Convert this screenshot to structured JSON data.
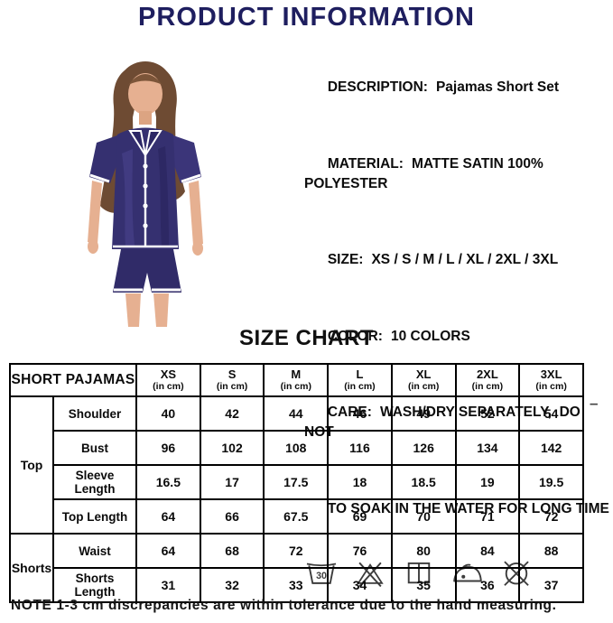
{
  "header": {
    "title": "PRODUCT INFORMATION",
    "accent_color": "#1e1e5f"
  },
  "product_photo": {
    "description": "model wearing navy satin short-sleeve pajama set with white piping",
    "garment_color": "#353070",
    "trim_color": "#ffffff"
  },
  "details": [
    {
      "label": "DESCRIPTION:",
      "value": "Pajamas Short Set"
    },
    {
      "label": "MATERIAL:",
      "value": "MATTE SATIN 100% POLYESTER"
    },
    {
      "label": "SIZE:",
      "value": "XS / S / M / L / XL / 2XL / 3XL"
    },
    {
      "label": "COLOR:",
      "value": "10 COLORS"
    },
    {
      "label": "CARE:",
      "value": "WASH/DRY SEPARATELY,  DO NOT"
    },
    {
      "label": "",
      "value": "TO SOAK IN THE WATER FOR LONG TIME"
    }
  ],
  "care_symbols": {
    "wash_temp": "30",
    "icons": [
      "machine-wash-30",
      "do-not-bleach",
      "line-dry",
      "iron-low-heat",
      "do-not-dry-clean"
    ]
  },
  "size_chart": {
    "title": "SIZE CHART",
    "corner_label": "SHORT PAJAMAS",
    "unit_note": "(in cm)",
    "sizes": [
      "XS",
      "S",
      "M",
      "L",
      "XL",
      "2XL",
      "3XL"
    ],
    "groups": [
      {
        "group": "Top",
        "rows": [
          {
            "label": "Shoulder",
            "values": [
              "40",
              "42",
              "44",
              "46",
              "49",
              "52",
              "54"
            ]
          },
          {
            "label": "Bust",
            "values": [
              "96",
              "102",
              "108",
              "116",
              "126",
              "134",
              "142"
            ]
          },
          {
            "label": "Sleeve Length",
            "values": [
              "16.5",
              "17",
              "17.5",
              "18",
              "18.5",
              "19",
              "19.5"
            ]
          },
          {
            "label": "Top Length",
            "values": [
              "64",
              "66",
              "67.5",
              "69",
              "70",
              "71",
              "72"
            ]
          }
        ]
      },
      {
        "group": "Shorts",
        "rows": [
          {
            "label": "Waist",
            "values": [
              "64",
              "68",
              "72",
              "76",
              "80",
              "84",
              "88"
            ]
          },
          {
            "label": "Shorts Length",
            "values": [
              "31",
              "32",
              "33",
              "34",
              "35",
              "36",
              "37"
            ]
          }
        ]
      }
    ]
  },
  "dash_mark": "–",
  "note": "NOTE 1-3 cm discrepancies are within tolerance due to the hand measuring."
}
